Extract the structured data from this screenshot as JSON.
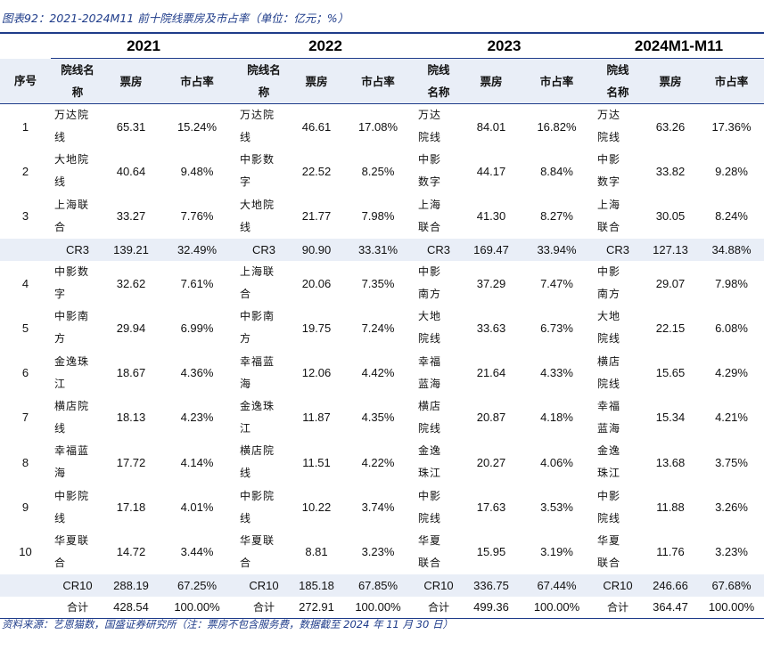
{
  "caption": "图表92：2021-2024M11 前十院线票房及市占率（单位：亿元；%）",
  "years": [
    "2021",
    "2022",
    "2023",
    "2024M1-M11"
  ],
  "headers": {
    "rank": "序号",
    "name_2021": "院线名\n称",
    "name_2022": "院线名\n称",
    "name_2023": "院线\n名称",
    "name_2024": "院线\n名称",
    "box": "票房",
    "share": "市占率"
  },
  "rows": [
    {
      "rank": "1",
      "cells": [
        {
          "name": "万达院\n线",
          "box": "65.31",
          "share": "15.24%"
        },
        {
          "name": "万达院\n线",
          "box": "46.61",
          "share": "17.08%"
        },
        {
          "name": "万达\n院线",
          "box": "84.01",
          "share": "16.82%"
        },
        {
          "name": "万达\n院线",
          "box": "63.26",
          "share": "17.36%"
        }
      ]
    },
    {
      "rank": "2",
      "cells": [
        {
          "name": "大地院\n线",
          "box": "40.64",
          "share": "9.48%"
        },
        {
          "name": "中影数\n字",
          "box": "22.52",
          "share": "8.25%"
        },
        {
          "name": "中影\n数字",
          "box": "44.17",
          "share": "8.84%"
        },
        {
          "name": "中影\n数字",
          "box": "33.82",
          "share": "9.28%"
        }
      ]
    },
    {
      "rank": "3",
      "cells": [
        {
          "name": "上海联\n合",
          "box": "33.27",
          "share": "7.76%"
        },
        {
          "name": "大地院\n线",
          "box": "21.77",
          "share": "7.98%"
        },
        {
          "name": "上海\n联合",
          "box": "41.30",
          "share": "8.27%"
        },
        {
          "name": "上海\n联合",
          "box": "30.05",
          "share": "8.24%"
        }
      ]
    }
  ],
  "cr3": [
    {
      "label": "CR3",
      "box": "139.21",
      "share": "32.49%"
    },
    {
      "label": "CR3",
      "box": "90.90",
      "share": "33.31%"
    },
    {
      "label": "CR3",
      "box": "169.47",
      "share": "33.94%"
    },
    {
      "label": "CR3",
      "box": "127.13",
      "share": "34.88%"
    }
  ],
  "rows2": [
    {
      "rank": "4",
      "cells": [
        {
          "name": "中影数\n字",
          "box": "32.62",
          "share": "7.61%"
        },
        {
          "name": "上海联\n合",
          "box": "20.06",
          "share": "7.35%"
        },
        {
          "name": "中影\n南方",
          "box": "37.29",
          "share": "7.47%"
        },
        {
          "name": "中影\n南方",
          "box": "29.07",
          "share": "7.98%"
        }
      ]
    },
    {
      "rank": "5",
      "cells": [
        {
          "name": "中影南\n方",
          "box": "29.94",
          "share": "6.99%"
        },
        {
          "name": "中影南\n方",
          "box": "19.75",
          "share": "7.24%"
        },
        {
          "name": "大地\n院线",
          "box": "33.63",
          "share": "6.73%"
        },
        {
          "name": "大地\n院线",
          "box": "22.15",
          "share": "6.08%"
        }
      ]
    },
    {
      "rank": "6",
      "cells": [
        {
          "name": "金逸珠\n江",
          "box": "18.67",
          "share": "4.36%"
        },
        {
          "name": "幸福蓝\n海",
          "box": "12.06",
          "share": "4.42%"
        },
        {
          "name": "幸福\n蓝海",
          "box": "21.64",
          "share": "4.33%"
        },
        {
          "name": "横店\n院线",
          "box": "15.65",
          "share": "4.29%"
        }
      ]
    },
    {
      "rank": "7",
      "cells": [
        {
          "name": "横店院\n线",
          "box": "18.13",
          "share": "4.23%"
        },
        {
          "name": "金逸珠\n江",
          "box": "11.87",
          "share": "4.35%"
        },
        {
          "name": "横店\n院线",
          "box": "20.87",
          "share": "4.18%"
        },
        {
          "name": "幸福\n蓝海",
          "box": "15.34",
          "share": "4.21%"
        }
      ]
    },
    {
      "rank": "8",
      "cells": [
        {
          "name": "幸福蓝\n海",
          "box": "17.72",
          "share": "4.14%"
        },
        {
          "name": "横店院\n线",
          "box": "11.51",
          "share": "4.22%"
        },
        {
          "name": "金逸\n珠江",
          "box": "20.27",
          "share": "4.06%"
        },
        {
          "name": "金逸\n珠江",
          "box": "13.68",
          "share": "3.75%"
        }
      ]
    },
    {
      "rank": "9",
      "cells": [
        {
          "name": "中影院\n线",
          "box": "17.18",
          "share": "4.01%"
        },
        {
          "name": "中影院\n线",
          "box": "10.22",
          "share": "3.74%"
        },
        {
          "name": "中影\n院线",
          "box": "17.63",
          "share": "3.53%"
        },
        {
          "name": "中影\n院线",
          "box": "11.88",
          "share": "3.26%"
        }
      ]
    },
    {
      "rank": "10",
      "cells": [
        {
          "name": "华夏联\n合",
          "box": "14.72",
          "share": "3.44%"
        },
        {
          "name": "华夏联\n合",
          "box": "8.81",
          "share": "3.23%"
        },
        {
          "name": "华夏\n联合",
          "box": "15.95",
          "share": "3.19%"
        },
        {
          "name": "华夏\n联合",
          "box": "11.76",
          "share": "3.23%"
        }
      ]
    }
  ],
  "cr10": [
    {
      "label": "CR10",
      "box": "288.19",
      "share": "67.25%"
    },
    {
      "label": "CR10",
      "box": "185.18",
      "share": "67.85%"
    },
    {
      "label": "CR10",
      "box": "336.75",
      "share": "67.44%"
    },
    {
      "label": "CR10",
      "box": "246.66",
      "share": "67.68%"
    }
  ],
  "total": [
    {
      "label": "合计",
      "box": "428.54",
      "share": "100.00%"
    },
    {
      "label": "合计",
      "box": "272.91",
      "share": "100.00%"
    },
    {
      "label": "合计",
      "box": "499.36",
      "share": "100.00%"
    },
    {
      "label": "合计",
      "box": "364.47",
      "share": "100.00%"
    }
  ],
  "source": "资料来源：艺恩猫数，国盛证券研究所（注：票房不包含服务费，数据截至 2024 年 11 月 30 日）",
  "colors": {
    "accent": "#1f3c8a",
    "band": "#e9eef7"
  }
}
